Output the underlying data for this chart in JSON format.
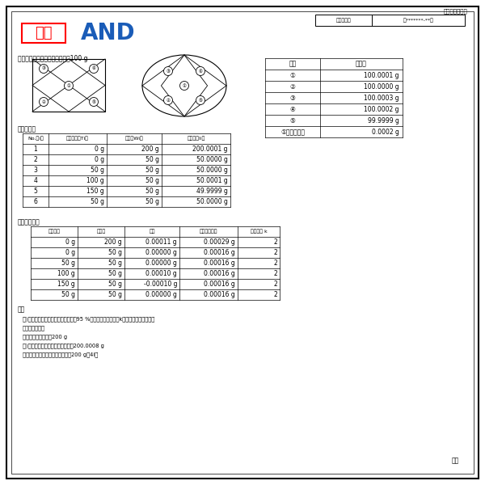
{
  "page_info": "総数３枚の３頁",
  "cert_label": "証明書番号",
  "cert_number": "第*******-**号",
  "watermark": "見本",
  "brand": "AΝD",
  "section5_title": "５．偏置荷重　　＊試験荷重＝100 g",
  "position_table_headers": [
    "位置",
    "指示値"
  ],
  "position_table_rows": [
    [
      "①",
      "100.0001 g"
    ],
    [
      "②",
      "100.0000 g"
    ],
    [
      "③",
      "100.0003 g"
    ],
    [
      "④",
      "100.0002 g"
    ],
    [
      "⑤",
      "99.9999 g"
    ],
    [
      "①との最大差",
      "0.0002 g"
    ]
  ],
  "section6_title": "６．正確さ",
  "accuracy_headers": [
    "No.（i）",
    "風袋荷重（Ti）",
    "荷重（Wi）",
    "指示値（Ii）"
  ],
  "accuracy_rows": [
    [
      "1",
      "0 g",
      "200 g",
      "200.0001 g"
    ],
    [
      "2",
      "0 g",
      "50 g",
      "50.0000 g"
    ],
    [
      "3",
      "50 g",
      "50 g",
      "50.0000 g"
    ],
    [
      "4",
      "100 g",
      "50 g",
      "50.0001 g"
    ],
    [
      "5",
      "150 g",
      "50 g",
      "49.9999 g"
    ],
    [
      "6",
      "50 g",
      "50 g",
      "50.0000 g"
    ]
  ],
  "section7_title": "７．校正結果",
  "calibration_headers": [
    "風袋荷重",
    "公称値",
    "偏差",
    "拡張不確かさ",
    "包含係数 k"
  ],
  "calibration_rows": [
    [
      "0 g",
      "200 g",
      "0.00011 g",
      "0.00029 g",
      "2"
    ],
    [
      "0 g",
      "50 g",
      "0.00000 g",
      "0.00016 g",
      "2"
    ],
    [
      "50 g",
      "50 g",
      "0.00000 g",
      "0.00016 g",
      "2"
    ],
    [
      "100 g",
      "50 g",
      "0.00010 g",
      "0.00016 g",
      "2"
    ],
    [
      "150 g",
      "50 g",
      "-0.00010 g",
      "0.00016 g",
      "2"
    ],
    [
      "50 g",
      "50 g",
      "0.00000 g",
      "0.00016 g",
      "2"
    ]
  ],
  "remarks_title": "備考",
  "remarks": [
    "１)．拡張不確かさは、信頼の水準が95 %に相当し、包含係数kは上記の通りである。",
    "２．校正の条件",
    "　　前負荷実施　　200 g",
    "３)．感度調整実施　　調整前　：200.0008 g",
    "　　　　　　　　　　使用分銅：200 g（4i）"
  ],
  "footer": "以上",
  "sq_labels": [
    [
      "③",
      14,
      53
    ],
    [
      "④",
      76,
      53
    ],
    [
      "①",
      45,
      32
    ],
    [
      "②",
      14,
      12
    ],
    [
      "⑤",
      76,
      12
    ]
  ],
  "el_labels": [
    [
      "③",
      -20,
      18
    ],
    [
      "④",
      20,
      18
    ],
    [
      "①",
      0,
      0
    ],
    [
      "②",
      -20,
      -18
    ],
    [
      "⑤",
      20,
      -18
    ]
  ]
}
